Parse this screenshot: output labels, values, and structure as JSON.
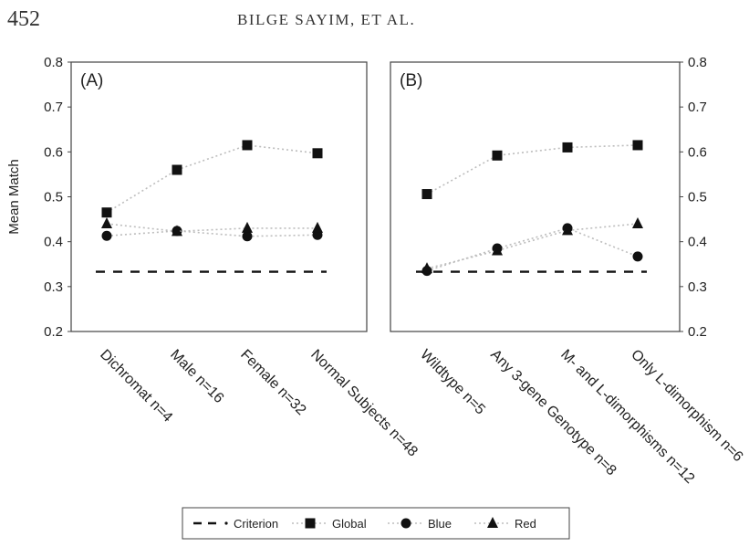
{
  "header": {
    "page_number": "452",
    "running_head": "BILGE SAYIM, ET AL."
  },
  "chart_data": [
    {
      "type": "line",
      "panel_label": "(A)",
      "ylabel": "Mean Match",
      "ylim": [
        0.2,
        0.8
      ],
      "yticks": [
        "0.2",
        "0.3",
        "0.4",
        "0.5",
        "0.6",
        "0.7",
        "0.8"
      ],
      "y_axis_side": "left",
      "categories": [
        "Dichromat  n=4",
        "Male  n=16",
        "Female  n=32",
        "Normal Subjects n=48"
      ],
      "series": [
        {
          "name": "Criterion",
          "marker": "none",
          "values": [
            0.333,
            0.333,
            0.333,
            0.333
          ]
        },
        {
          "name": "Global",
          "marker": "square",
          "values": [
            0.465,
            0.56,
            0.615,
            0.597
          ]
        },
        {
          "name": "Blue",
          "marker": "circle",
          "values": [
            0.413,
            0.424,
            0.412,
            0.415
          ]
        },
        {
          "name": "Red",
          "marker": "triangle",
          "values": [
            0.44,
            0.423,
            0.43,
            0.43
          ]
        }
      ]
    },
    {
      "type": "line",
      "panel_label": "(B)",
      "ylim": [
        0.2,
        0.8
      ],
      "yticks": [
        "0.2",
        "0.3",
        "0.4",
        "0.5",
        "0.6",
        "0.7",
        "0.8"
      ],
      "y_axis_side": "right",
      "categories": [
        "Wildtype n=5",
        "Any 3-gene Genotype n=8",
        "M- and L-dimorphisms n=12",
        "Only L-dimorphism n=6"
      ],
      "series": [
        {
          "name": "Criterion",
          "marker": "none",
          "values": [
            0.333,
            0.333,
            0.333,
            0.333
          ]
        },
        {
          "name": "Global",
          "marker": "square",
          "values": [
            0.506,
            0.592,
            0.61,
            0.615
          ]
        },
        {
          "name": "Blue",
          "marker": "circle",
          "values": [
            0.335,
            0.385,
            0.43,
            0.367
          ]
        },
        {
          "name": "Red",
          "marker": "triangle",
          "values": [
            0.34,
            0.38,
            0.425,
            0.44
          ]
        }
      ]
    }
  ],
  "legend": {
    "items": [
      {
        "label": "Criterion",
        "marker": "none"
      },
      {
        "label": "Global",
        "marker": "square"
      },
      {
        "label": "Blue",
        "marker": "circle"
      },
      {
        "label": "Red",
        "marker": "triangle"
      }
    ]
  }
}
